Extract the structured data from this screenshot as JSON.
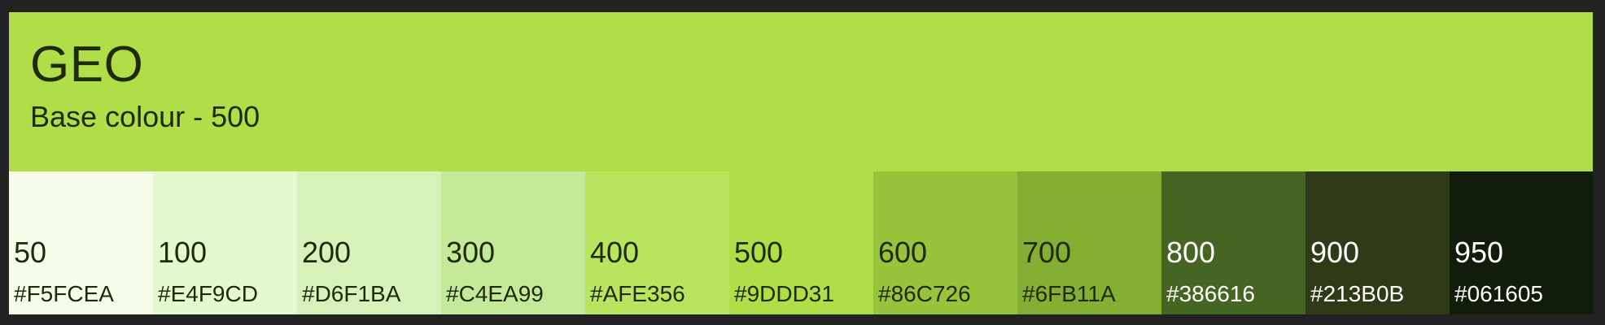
{
  "palette": {
    "name": "GEO",
    "subtitle": "Base colour - 500",
    "header_color": "#AFDE48",
    "header_text_color": "#1E2A0A",
    "swatches": [
      {
        "shade": "50",
        "hex": "#F5FCEA",
        "bg": "#F5FCEA",
        "fg": "#1E2A0A"
      },
      {
        "shade": "100",
        "hex": "#E4F9CD",
        "bg": "#E4F9CD",
        "fg": "#1E2A0A"
      },
      {
        "shade": "200",
        "hex": "#D6F1BA",
        "bg": "#D6F1BA",
        "fg": "#1E2A0A"
      },
      {
        "shade": "300",
        "hex": "#C4EA99",
        "bg": "#C4EA99",
        "fg": "#1E2A0A"
      },
      {
        "shade": "400",
        "hex": "#AFE356",
        "bg": "#B9E45E",
        "fg": "#1E2A0A"
      },
      {
        "shade": "500",
        "hex": "#9DDD31",
        "bg": "#AFDE48",
        "fg": "#1E2A0A"
      },
      {
        "shade": "600",
        "hex": "#86C726",
        "bg": "#98C33A",
        "fg": "#1E2A0A"
      },
      {
        "shade": "700",
        "hex": "#6FB11A",
        "bg": "#85AF32",
        "fg": "#1E2A0A"
      },
      {
        "shade": "800",
        "hex": "#386616",
        "bg": "#466522",
        "fg": "#FFFFFF"
      },
      {
        "shade": "900",
        "hex": "#213B0B",
        "bg": "#2E3B16",
        "fg": "#FFFFFF"
      },
      {
        "shade": "950",
        "hex": "#061605",
        "bg": "#121C0A",
        "fg": "#FFFFFF"
      }
    ]
  }
}
